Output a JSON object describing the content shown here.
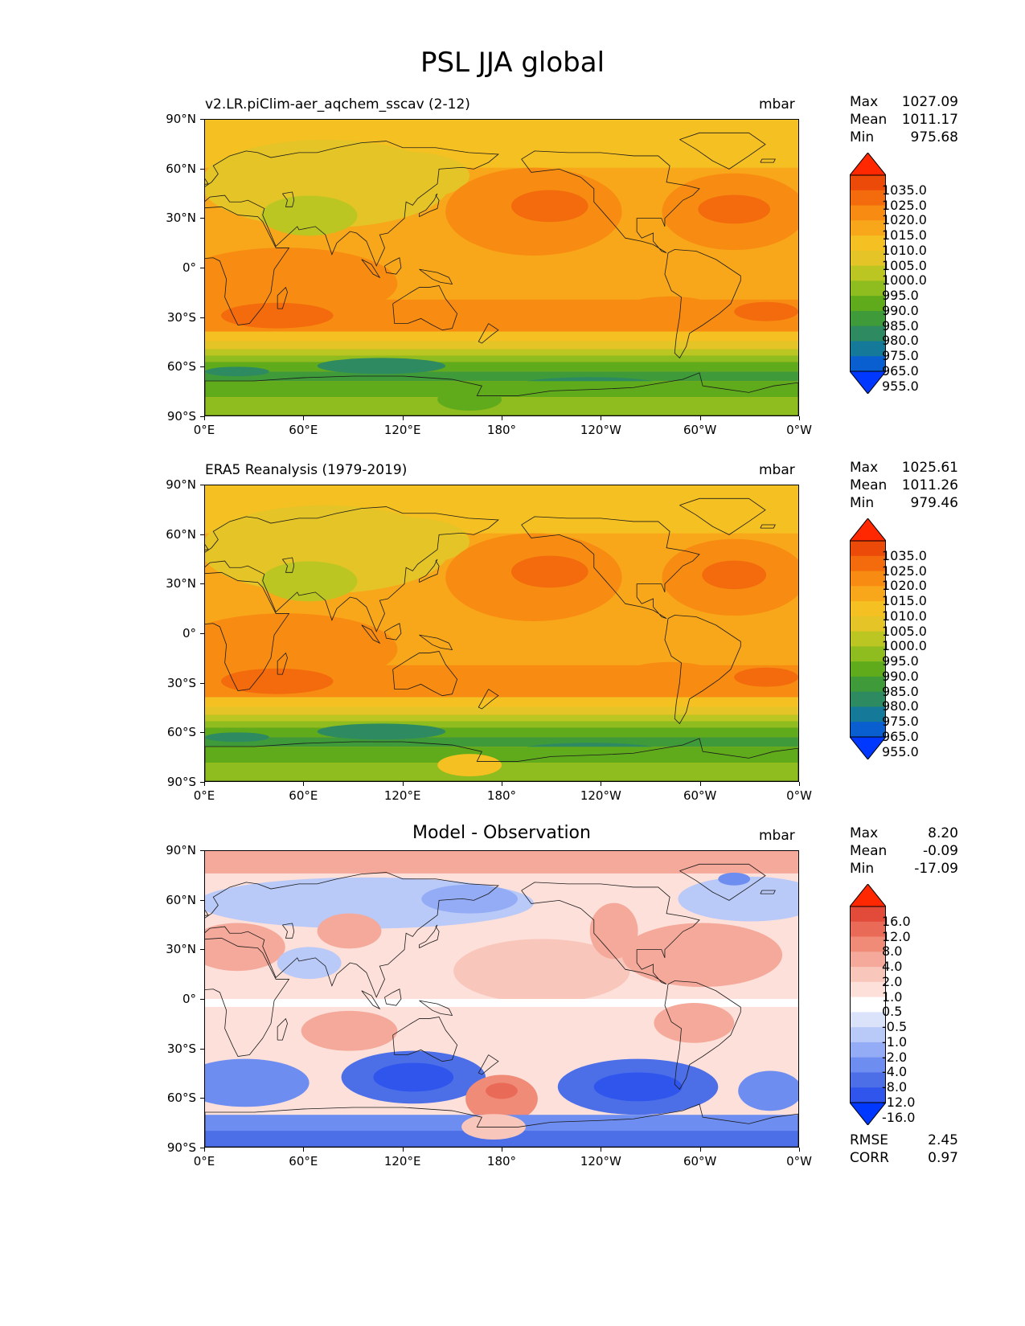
{
  "title": "PSL JJA global",
  "panels": [
    {
      "subtitle_left": "v2.LR.piClim-aer_aqchem_sscav (2-12)",
      "subtitle_center": "",
      "units": "mbar",
      "stats": [
        {
          "label": "Max",
          "value": "1027.09"
        },
        {
          "label": "Mean",
          "value": "1011.17"
        },
        {
          "label": "Min",
          "value": "975.68"
        }
      ],
      "colorbar_labels": [
        "1035.0",
        "1025.0",
        "1020.0",
        "1015.0",
        "1010.0",
        "1005.0",
        "1000.0",
        "995.0",
        "990.0",
        "985.0",
        "980.0",
        "975.0",
        "965.0",
        "955.0"
      ]
    },
    {
      "subtitle_left": "ERA5 Reanalysis (1979-2019)",
      "subtitle_center": "",
      "units": "mbar",
      "stats": [
        {
          "label": "Max",
          "value": "1025.61"
        },
        {
          "label": "Mean",
          "value": "1011.26"
        },
        {
          "label": "Min",
          "value": "979.46"
        }
      ],
      "colorbar_labels": [
        "1035.0",
        "1025.0",
        "1020.0",
        "1015.0",
        "1010.0",
        "1005.0",
        "1000.0",
        "995.0",
        "990.0",
        "985.0",
        "980.0",
        "975.0",
        "965.0",
        "955.0"
      ]
    },
    {
      "subtitle_left": "",
      "subtitle_center": "Model - Observation",
      "units": "mbar",
      "stats": [
        {
          "label": "Max",
          "value": "8.20"
        },
        {
          "label": "Mean",
          "value": "-0.09"
        },
        {
          "label": "Min",
          "value": "-17.09"
        }
      ],
      "colorbar_labels": [
        "16.0",
        "12.0",
        "8.0",
        "4.0",
        "2.0",
        "1.0",
        "0.5",
        "-0.5",
        "-1.0",
        "-2.0",
        "-4.0",
        "-8.0",
        "-12.0",
        "-16.0"
      ],
      "footer_stats": [
        {
          "label": "RMSE",
          "value": "2.45"
        },
        {
          "label": "CORR",
          "value": "0.97"
        }
      ]
    }
  ],
  "y_ticks": [
    "90°N",
    "60°N",
    "30°N",
    "0°",
    "30°S",
    "60°S",
    "90°S"
  ],
  "x_ticks": [
    "0°E",
    "60°E",
    "120°E",
    "180°",
    "120°W",
    "60°W",
    "0°W"
  ],
  "colors": {
    "psl_scale": [
      "#0038ff",
      "#0a5fd0",
      "#157a9a",
      "#2e8a60",
      "#3f9a3a",
      "#60ab1c",
      "#8fbc1e",
      "#bcc622",
      "#e4c426",
      "#f5c021",
      "#f8a71a",
      "#f88c12",
      "#f36b0c",
      "#ec4a08",
      "#ff2800"
    ],
    "diff_scale": [
      "#0038ff",
      "#2f55ec",
      "#4c6fe8",
      "#6e8df0",
      "#93acf5",
      "#b9c9f8",
      "#dbe3fb",
      "#ffffff",
      "#fde0da",
      "#f9c6bb",
      "#f5a99a",
      "#f08b78",
      "#ea6a58",
      "#e24a3a",
      "#ff2800"
    ]
  }
}
